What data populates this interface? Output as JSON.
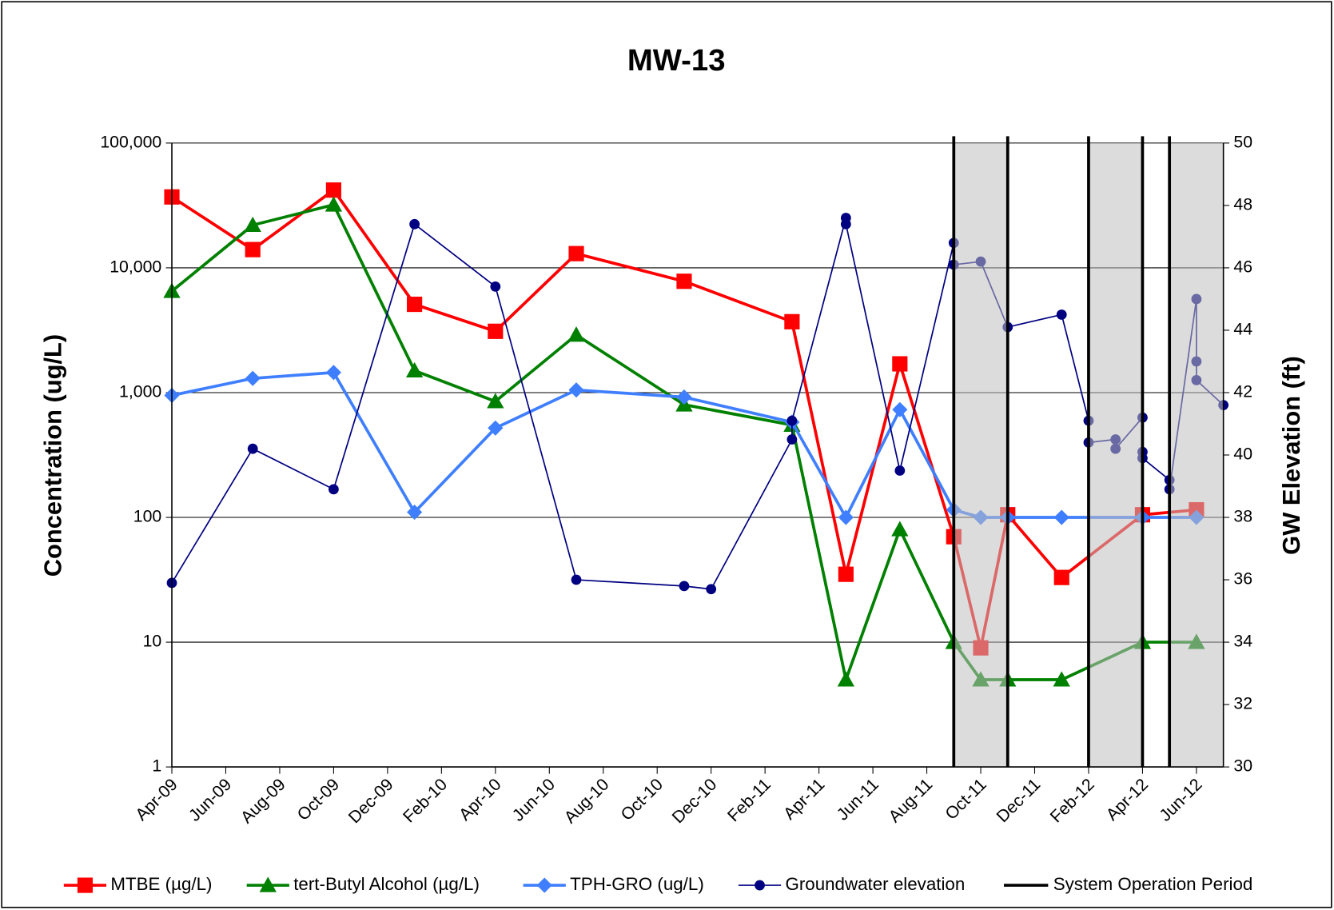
{
  "chart_data": {
    "type": "line",
    "title": "MW-13",
    "y_label": "Concentration (ug/L)",
    "y2_label": "GW Elevation (ft)",
    "xlim": [
      "2009-04",
      "2012-07"
    ],
    "xticks": [
      {
        "value": "2009-04",
        "label": "Apr-09"
      },
      {
        "value": "2009-06",
        "label": "Jun-09"
      },
      {
        "value": "2009-08",
        "label": "Aug-09"
      },
      {
        "value": "2009-10",
        "label": "Oct-09"
      },
      {
        "value": "2009-12",
        "label": "Dec-09"
      },
      {
        "value": "2010-02",
        "label": "Feb-10"
      },
      {
        "value": "2010-04",
        "label": "Apr-10"
      },
      {
        "value": "2010-06",
        "label": "Jun-10"
      },
      {
        "value": "2010-08",
        "label": "Aug-10"
      },
      {
        "value": "2010-10",
        "label": "Oct-10"
      },
      {
        "value": "2010-12",
        "label": "Dec-10"
      },
      {
        "value": "2011-02",
        "label": "Feb-11"
      },
      {
        "value": "2011-04",
        "label": "Apr-11"
      },
      {
        "value": "2011-06",
        "label": "Jun-11"
      },
      {
        "value": "2011-08",
        "label": "Aug-11"
      },
      {
        "value": "2011-10",
        "label": "Oct-11"
      },
      {
        "value": "2011-12",
        "label": "Dec-11"
      },
      {
        "value": "2012-02",
        "label": "Feb-12"
      },
      {
        "value": "2012-04",
        "label": "Apr-12"
      },
      {
        "value": "2012-06",
        "label": "Jun-12"
      }
    ],
    "ylim": [
      1,
      100000
    ],
    "y_log": true,
    "yticks": [
      1,
      10,
      100,
      {
        "value": 1000,
        "label": "1,000"
      },
      {
        "value": 10000,
        "label": "10,000"
      },
      {
        "value": 100000,
        "label": "100,000"
      }
    ],
    "y2lim": [
      30,
      50
    ],
    "y2ticks": [
      30,
      32,
      34,
      36,
      38,
      40,
      42,
      44,
      46,
      48,
      50
    ],
    "grid": true,
    "legend": "bottom",
    "series": [
      {
        "name": "MTBE (µg/L)",
        "color": "#ff0000",
        "marker": "square",
        "x": [
          "2009-04",
          "2009-07",
          "2009-10",
          "2010-01",
          "2010-04",
          "2010-07",
          "2010-11",
          "2011-03",
          "2011-05",
          "2011-07",
          "2011-09",
          "2011-10",
          "2011-11",
          "2012-01",
          "2012-04",
          "2012-06"
        ],
        "values": [
          37000,
          14000,
          42000,
          5100,
          3100,
          13000,
          7800,
          3700,
          35,
          1700,
          70,
          9,
          105,
          33,
          105,
          115
        ]
      },
      {
        "name": "tert-Butyl Alcohol (µg/L)",
        "color": "#008000",
        "marker": "triangle",
        "x": [
          "2009-04",
          "2009-07",
          "2009-10",
          "2010-01",
          "2010-04",
          "2010-07",
          "2010-11",
          "2011-03",
          "2011-05",
          "2011-07",
          "2011-09",
          "2011-10",
          "2011-11",
          "2012-01",
          "2012-04",
          "2012-06"
        ],
        "values": [
          6500,
          22000,
          32000,
          1500,
          850,
          2900,
          800,
          550,
          5,
          80,
          10,
          5,
          5,
          5,
          10,
          10
        ]
      },
      {
        "name": "TPH-GRO (ug/L)",
        "color": "#3f7fff",
        "marker": "diamond",
        "x": [
          "2009-04",
          "2009-07",
          "2009-10",
          "2010-01",
          "2010-04",
          "2010-07",
          "2010-11",
          "2011-03",
          "2011-05",
          "2011-07",
          "2011-09",
          "2011-10",
          "2011-11",
          "2012-01",
          "2012-04",
          "2012-06"
        ],
        "values": [
          950,
          1300,
          1450,
          110,
          520,
          1050,
          920,
          580,
          100,
          730,
          115,
          100,
          100,
          100,
          100,
          100
        ]
      },
      {
        "name": "Groundwater elevation",
        "color": "#000080",
        "marker": "circle",
        "axis": "y2",
        "x": [
          "2009-04",
          "2009-07",
          "2009-10",
          "2010-01",
          "2010-04",
          "2010-07",
          "2010-11",
          "2010-12",
          "2011-03",
          "2011-03",
          "2011-05",
          "2011-05",
          "2011-07",
          "2011-09",
          "2011-09",
          "2011-10",
          "2011-11",
          "2012-01",
          "2012-02",
          "2012-02",
          "2012-03",
          "2012-03",
          "2012-04",
          "2012-04",
          "2012-04",
          "2012-05",
          "2012-05",
          "2012-06",
          "2012-06",
          "2012-06",
          "2012-07"
        ],
        "values": [
          35.9,
          40.2,
          38.9,
          47.4,
          45.4,
          36,
          35.8,
          35.7,
          40.5,
          41.1,
          47.6,
          47.4,
          39.5,
          46.8,
          46.1,
          46.2,
          44.1,
          44.5,
          41.1,
          40.4,
          40.5,
          40.2,
          41.2,
          40.1,
          39.9,
          39.2,
          38.9,
          45,
          43,
          42.4,
          41.6
        ]
      }
    ],
    "operation_period": {
      "name": "System Operation Period",
      "color": "#000000",
      "shade": "#c0c0c0",
      "periods": [
        [
          "2011-09",
          "2011-11"
        ],
        [
          "2012-02",
          "2012-04"
        ],
        [
          "2012-05",
          "2012-07"
        ]
      ]
    }
  }
}
